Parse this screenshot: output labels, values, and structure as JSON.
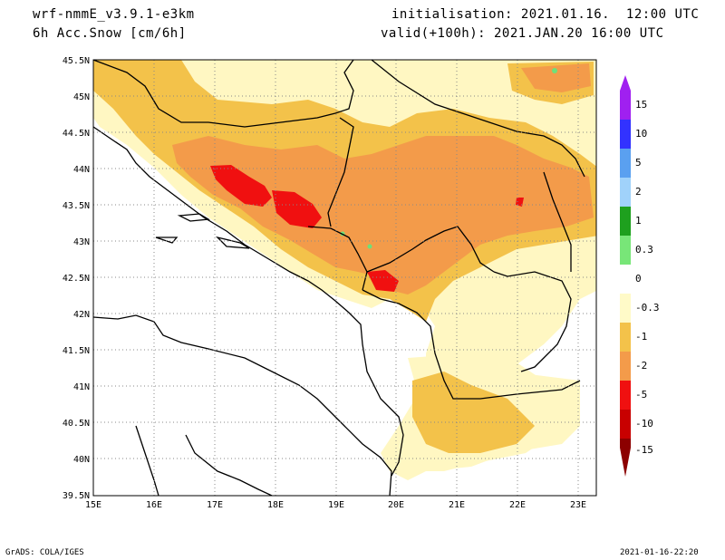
{
  "header": {
    "model": "wrf-nmmE_v3.9.1-e3km",
    "field": "6h Acc.Snow [cm/6h]",
    "init": "initialisation: 2021.01.16.  12:00 UTC",
    "valid": "valid(+100h): 2021.JAN.20 16:00 UTC"
  },
  "map": {
    "lon_ticks": [
      "15E",
      "16E",
      "17E",
      "18E",
      "19E",
      "20E",
      "21E",
      "22E",
      "23E"
    ],
    "lat_ticks": [
      "45.5N",
      "45N",
      "44.5N",
      "44N",
      "43.5N",
      "43N",
      "42.5N",
      "42N",
      "41.5N",
      "41N",
      "40.5N",
      "40N",
      "39.5N"
    ],
    "lon_range": [
      15,
      23.3
    ],
    "lat_range": [
      39.5,
      45.5
    ],
    "colors": {
      "light": "#fff7c2",
      "yellow": "#f3c24a",
      "orange": "#f39b4a",
      "red": "#f01010",
      "green": "#6ee07a",
      "coast": "#000000"
    }
  },
  "colorbar": {
    "labels": [
      "15",
      "10",
      "5",
      "2",
      "1",
      "0.3",
      "0",
      "-0.3",
      "-1",
      "-2",
      "-5",
      "-10",
      "-15"
    ],
    "colors": [
      "#a020f0",
      "#3232ff",
      "#5aa0f0",
      "#a0d2fa",
      "#1ea01e",
      "#78e678",
      "#ffffff",
      "#fffac8",
      "#f3c24a",
      "#f39b4a",
      "#f01010",
      "#c80000",
      "#8c0000"
    ]
  },
  "footer": {
    "left": "GrADS: COLA/IGES",
    "right": "2021-01-16-22:20"
  }
}
